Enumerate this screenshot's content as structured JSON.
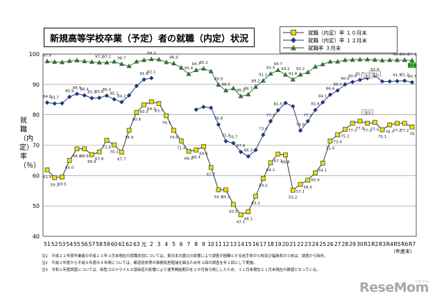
{
  "chart_data": {
    "type": "line",
    "title": "新規高等学校卒業（予定）者の就職（内定）状況",
    "ylabel": "就職（内定）率（％）",
    "ylim": [
      40,
      100
    ],
    "yticks": [
      "40",
      "50",
      "60",
      "70",
      "80",
      "90",
      "100"
    ],
    "grid": true,
    "legend_position": "top-right",
    "categories": [
      "51",
      "52",
      "53",
      "54",
      "55",
      "56",
      "57",
      "58",
      "59",
      "60",
      "61",
      "62",
      "63",
      "元",
      "2",
      "3",
      "4",
      "5",
      "6",
      "7",
      "8",
      "9",
      "10",
      "11",
      "12",
      "13",
      "14",
      "15",
      "16",
      "17",
      "18",
      "19",
      "20",
      "21",
      "22",
      "23",
      "24",
      "25",
      "26",
      "27",
      "28",
      "29",
      "30",
      "R1",
      "R2",
      "R3",
      "R4",
      "R5",
      "R6",
      "R7"
    ],
    "x_end_label": "（年度末）",
    "series": [
      {
        "name": "就職（内定）率 １０月末",
        "color": "#e8e000",
        "values": [
          61.9,
          59.3,
          59.5,
          65.0,
          68.8,
          68.8,
          66.9,
          67.8,
          71.6,
          70.1,
          67.7,
          74.9,
          80.8,
          83.3,
          84.3,
          83.7,
          79.7,
          74.9,
          71.4,
          68.0,
          68.4,
          69.6,
          62.7,
          55.3,
          55.3,
          50.5,
          47.1,
          48.1,
          53.2,
          59.0,
          64.2,
          67.1,
          66.8,
          55.2,
          57.1,
          58.5,
          60.9,
          64.1,
          71.4,
          73.4,
          75.2,
          77.2,
          77.9,
          77.2,
          77.5,
          75.1,
          76.7,
          77.2,
          77.2,
          76.0
        ],
        "labels": [
          "61.9",
          "59.3",
          "59.5",
          "65.0",
          "68.8",
          "68.8",
          "66.9",
          "67.8",
          "71.6",
          "70.1",
          "67.7",
          "74.9",
          "80.8",
          "83.3",
          "84.3",
          "83.7",
          "79.7",
          "74.9",
          "71.4",
          "68.0",
          "68.4",
          "69.6",
          "62.7",
          "55.3",
          "55.3",
          "50.5",
          "47.1",
          "48.1",
          "53.2",
          "59.0",
          "64.2",
          "67.1",
          "66.8",
          "55.2",
          "57.1",
          "58.5",
          "60.9",
          "64.1",
          "71.4",
          "73.4",
          "75.2",
          "77.2",
          "77.9",
          "77.2",
          "77.5",
          "75.1",
          "76.7",
          "77.2",
          "77.2",
          "76"
        ]
      },
      {
        "name": "就職（内定）率 １２月末",
        "color": "#1f3a7a",
        "values": [
          84.0,
          83.7,
          83.8,
          85.9,
          86.9,
          86.4,
          85.5,
          85.6,
          86.3,
          85.1,
          84.2,
          86.4,
          89.5,
          91.6,
          92.1,
          null,
          null,
          null,
          null,
          null,
          81.7,
          82.6,
          82.3,
          76.8,
          71.3,
          70.7,
          67.8,
          66.3,
          68.4,
          73.4,
          77.9,
          81.5,
          83.9,
          82.8,
          74.8,
          77.9,
          81.6,
          84.1,
          86.6,
          88.0,
          90.0,
          90.8,
          91.5,
          92.1,
          92.9,
          91.0,
          91.0,
          91.1,
          91.2,
          90.7
        ],
        "labels": [
          "84.0",
          "83.7",
          "",
          "85.9",
          "86.9",
          "86.4",
          "85.5",
          "85.6",
          "86.3",
          "85.1",
          "84.2",
          "",
          "",
          "91.6",
          "92.1",
          "",
          "",
          "",
          "",
          "",
          "",
          "",
          "",
          "76.8",
          "71.3",
          "70.7",
          "67.8",
          "66.3",
          "",
          "73.4",
          "77.9",
          "81.5",
          "",
          "",
          "74.8",
          "77.9",
          "81.6",
          "84.1",
          "86.6",
          "88.0",
          "90.0",
          "90.8",
          "91.5",
          "",
          "92.9",
          "",
          "",
          "91.1",
          "91.2",
          "90.7"
        ]
      },
      {
        "name": "就職率 ３月末",
        "color": "#2f7a2a",
        "values": [
          97.6,
          97.4,
          97.3,
          97.7,
          97.9,
          97.6,
          97.4,
          97.2,
          97.2,
          97.5,
          96.7,
          96.0,
          97.5,
          98.0,
          98.3,
          98.2,
          97.3,
          96.9,
          95.5,
          93.4,
          94.7,
          95.2,
          94.3,
          89.9,
          88.0,
          88.7,
          86.1,
          86.7,
          89.2,
          91.2,
          93.5,
          94.7,
          93.2,
          91.6,
          93.2,
          94.0,
          95.8,
          96.6,
          97.5,
          97.5,
          98.0,
          98.1,
          98.2,
          98.2,
          98.1,
          97.9,
          98.0,
          98.0,
          98.0,
          97.9
        ],
        "labels": [
          "97.6",
          "",
          "",
          "",
          "",
          "",
          "",
          "97.2",
          "97.2",
          "",
          "96.7",
          "",
          "",
          "",
          "98.3",
          "",
          "",
          "96.9",
          "",
          "93.4",
          "94.7",
          "95.2",
          "",
          "89.9",
          "88.0",
          "",
          "86.1",
          "86.7",
          "89.2",
          "91.2",
          "93.5",
          "94.7",
          "93.2",
          "91.6",
          "93.2",
          "",
          "",
          "",
          "",
          "",
          "",
          "",
          "",
          "",
          "",
          "",
          "",
          "98.0",
          "98.0",
          "97.9"
        ]
      }
    ],
    "callouts": [
      "（注1）",
      "（注3）",
      "（注3）"
    ]
  },
  "notes": [
    "注1　平成２２年度卒業者の平成２３年３月末現在の就職状況については、東日本大震災の影響により調査が困難とする岩手県の５校及び福島県の５校は、調査から除外。",
    "注2　平成３年度から平成６年度の４年間については、都道府県等の事務負担軽減を図るため年３回の調査を年２回として実施。",
    "注3　令和２年度調査については、新型コロナウイルス感染症の影響により選考開始期日を１か月後ろ倒ししたため、１１月末現在と１月末現在の数値となっている。"
  ],
  "logo": {
    "text": "ReseMom",
    "sub": "リセマム"
  }
}
